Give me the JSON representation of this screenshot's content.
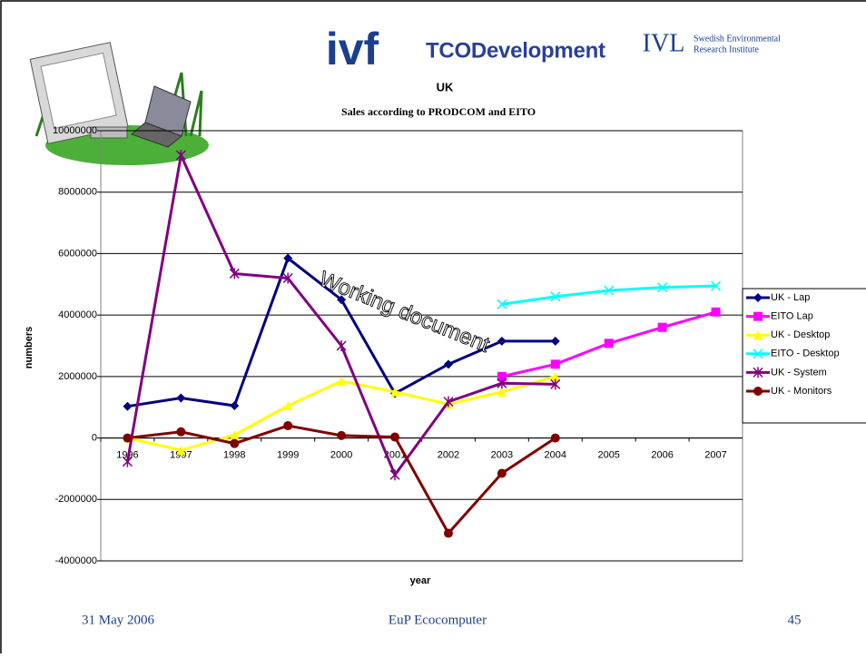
{
  "logos": {
    "ivf": "ivf",
    "tco": "TCODevelopment",
    "ivl": "IVL",
    "ivl_line1": "Swedish Environmental",
    "ivl_line2": "Research Institute"
  },
  "watermark": "Working document",
  "footer": {
    "date": "31 May 2006",
    "center": "EuP Ecocomputer",
    "page": "45"
  },
  "chart_data": {
    "type": "line",
    "title": "UK",
    "subtitle": "Sales according to PRODCOM and EITO",
    "x_label": "year",
    "y_label": "numbers",
    "categories": [
      "1996",
      "1997",
      "1998",
      "1999",
      "2000",
      "2001",
      "2002",
      "2003",
      "2004",
      "2005",
      "2006",
      "2007"
    ],
    "ylim": [
      -4000000,
      10000000
    ],
    "yticks": [
      -4000000,
      -2000000,
      0,
      2000000,
      4000000,
      6000000,
      8000000,
      10000000
    ],
    "grid": true,
    "legend": "right",
    "series": [
      {
        "name": "UK - Lap",
        "color": "#000080",
        "marker": "diamond",
        "values": [
          1030000,
          1300000,
          1050000,
          5850000,
          4500000,
          1450000,
          2400000,
          3150000,
          3150000,
          null,
          null,
          null
        ]
      },
      {
        "name": "EITO Lap",
        "color": "#ff00ff",
        "marker": "square",
        "values": [
          null,
          null,
          null,
          null,
          null,
          null,
          null,
          2000000,
          2400000,
          3080000,
          3600000,
          4100000
        ]
      },
      {
        "name": "UK - Desktop",
        "color": "#ffff00",
        "marker": "triangle",
        "values": [
          0,
          -400000,
          100000,
          1050000,
          1850000,
          1500000,
          1100000,
          1500000,
          2000000,
          null,
          null,
          null
        ]
      },
      {
        "name": "EITO - Desktop",
        "color": "#00ffff",
        "marker": "x",
        "values": [
          null,
          null,
          null,
          null,
          null,
          null,
          null,
          4350000,
          4600000,
          4800000,
          4900000,
          4950000
        ]
      },
      {
        "name": "UK - System",
        "color": "#800080",
        "marker": "star",
        "values": [
          -770000,
          9200000,
          5350000,
          5200000,
          3000000,
          -1200000,
          1180000,
          1780000,
          1750000,
          null,
          null,
          null
        ]
      },
      {
        "name": "UK - Monitors",
        "color": "#800000",
        "marker": "circle",
        "values": [
          0,
          200000,
          -180000,
          400000,
          80000,
          30000,
          -3100000,
          -1150000,
          0,
          null,
          null,
          null
        ]
      }
    ]
  }
}
